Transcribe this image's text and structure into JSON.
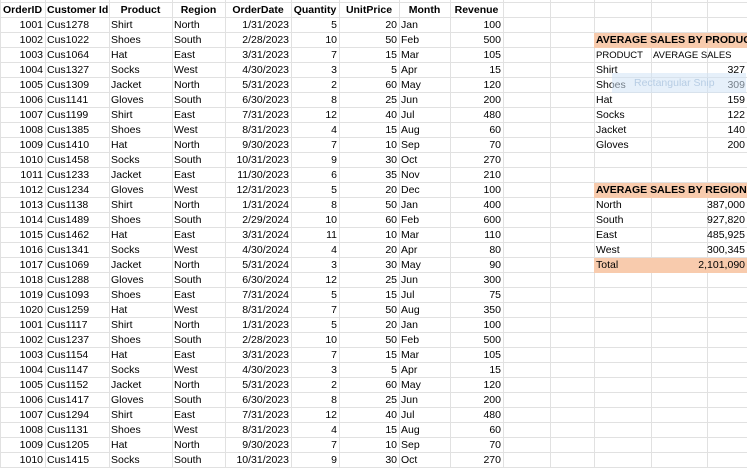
{
  "table": {
    "headers": [
      "OrderID",
      "Customer Id",
      "Product",
      "Region",
      "OrderDate",
      "Quantity",
      "UnitPrice",
      "Month",
      "Revenue"
    ],
    "rows": [
      [
        "1001",
        "Cus1278",
        "Shirt",
        "North",
        "1/31/2023",
        "5",
        "20",
        "Jan",
        "100"
      ],
      [
        "1002",
        "Cus1022",
        "Shoes",
        "South",
        "2/28/2023",
        "10",
        "50",
        "Feb",
        "500"
      ],
      [
        "1003",
        "Cus1064",
        "Hat",
        "East",
        "3/31/2023",
        "7",
        "15",
        "Mar",
        "105"
      ],
      [
        "1004",
        "Cus1327",
        "Socks",
        "West",
        "4/30/2023",
        "3",
        "5",
        "Apr",
        "15"
      ],
      [
        "1005",
        "Cus1309",
        "Jacket",
        "North",
        "5/31/2023",
        "2",
        "60",
        "May",
        "120"
      ],
      [
        "1006",
        "Cus1141",
        "Gloves",
        "South",
        "6/30/2023",
        "8",
        "25",
        "Jun",
        "200"
      ],
      [
        "1007",
        "Cus1199",
        "Shirt",
        "East",
        "7/31/2023",
        "12",
        "40",
        "Jul",
        "480"
      ],
      [
        "1008",
        "Cus1385",
        "Shoes",
        "West",
        "8/31/2023",
        "4",
        "15",
        "Aug",
        "60"
      ],
      [
        "1009",
        "Cus1410",
        "Hat",
        "North",
        "9/30/2023",
        "7",
        "10",
        "Sep",
        "70"
      ],
      [
        "1010",
        "Cus1458",
        "Socks",
        "South",
        "10/31/2023",
        "9",
        "30",
        "Oct",
        "270"
      ],
      [
        "1011",
        "Cus1233",
        "Jacket",
        "East",
        "11/30/2023",
        "6",
        "35",
        "Nov",
        "210"
      ],
      [
        "1012",
        "Cus1234",
        "Gloves",
        "West",
        "12/31/2023",
        "5",
        "20",
        "Dec",
        "100"
      ],
      [
        "1013",
        "Cus1138",
        "Shirt",
        "North",
        "1/31/2024",
        "8",
        "50",
        "Jan",
        "400"
      ],
      [
        "1014",
        "Cus1489",
        "Shoes",
        "South",
        "2/29/2024",
        "10",
        "60",
        "Feb",
        "600"
      ],
      [
        "1015",
        "Cus1462",
        "Hat",
        "East",
        "3/31/2024",
        "11",
        "10",
        "Mar",
        "110"
      ],
      [
        "1016",
        "Cus1341",
        "Socks",
        "West",
        "4/30/2024",
        "4",
        "20",
        "Apr",
        "80"
      ],
      [
        "1017",
        "Cus1069",
        "Jacket",
        "North",
        "5/31/2024",
        "3",
        "30",
        "May",
        "90"
      ],
      [
        "1018",
        "Cus1288",
        "Gloves",
        "South",
        "6/30/2024",
        "12",
        "25",
        "Jun",
        "300"
      ],
      [
        "1019",
        "Cus1093",
        "Shoes",
        "East",
        "7/31/2024",
        "5",
        "15",
        "Jul",
        "75"
      ],
      [
        "1020",
        "Cus1259",
        "Hat",
        "West",
        "8/31/2024",
        "7",
        "50",
        "Aug",
        "350"
      ],
      [
        "1001",
        "Cus1117",
        "Shirt",
        "North",
        "1/31/2023",
        "5",
        "20",
        "Jan",
        "100"
      ],
      [
        "1002",
        "Cus1237",
        "Shoes",
        "South",
        "2/28/2023",
        "10",
        "50",
        "Feb",
        "500"
      ],
      [
        "1003",
        "Cus1154",
        "Hat",
        "East",
        "3/31/2023",
        "7",
        "15",
        "Mar",
        "105"
      ],
      [
        "1004",
        "Cus1147",
        "Socks",
        "West",
        "4/30/2023",
        "3",
        "5",
        "Apr",
        "15"
      ],
      [
        "1005",
        "Cus1152",
        "Jacket",
        "North",
        "5/31/2023",
        "2",
        "60",
        "May",
        "120"
      ],
      [
        "1006",
        "Cus1417",
        "Gloves",
        "South",
        "6/30/2023",
        "8",
        "25",
        "Jun",
        "200"
      ],
      [
        "1007",
        "Cus1294",
        "Shirt",
        "East",
        "7/31/2023",
        "12",
        "40",
        "Jul",
        "480"
      ],
      [
        "1008",
        "Cus1131",
        "Shoes",
        "West",
        "8/31/2023",
        "4",
        "15",
        "Aug",
        "60"
      ],
      [
        "1009",
        "Cus1205",
        "Hat",
        "North",
        "9/30/2023",
        "7",
        "10",
        "Sep",
        "70"
      ],
      [
        "1010",
        "Cus1415",
        "Socks",
        "South",
        "10/31/2023",
        "9",
        "30",
        "Oct",
        "270"
      ]
    ]
  },
  "avg_by_product": {
    "title": "AVERAGE SALES BY PRODUCT",
    "col_product": "PRODUCT",
    "col_avg": "AVERAGE SALES",
    "rows": [
      [
        "Shirt",
        "327"
      ],
      [
        "Shoes",
        "309"
      ],
      [
        "Hat",
        "159"
      ],
      [
        "Socks",
        "122"
      ],
      [
        "Jacket",
        "140"
      ],
      [
        "Gloves",
        "200"
      ]
    ]
  },
  "avg_by_region": {
    "title": "AVERAGE SALES BY REGION",
    "rows": [
      [
        "North",
        "387,000"
      ],
      [
        "South",
        "927,820"
      ],
      [
        "East",
        "485,925"
      ],
      [
        "West",
        "300,345"
      ]
    ],
    "total_label": "Total",
    "total_value": "2,101,090"
  },
  "snip_overlay": "Rectangular Snip",
  "colors": {
    "peach": "#f8cbad",
    "grid": "#e1e1e1"
  }
}
